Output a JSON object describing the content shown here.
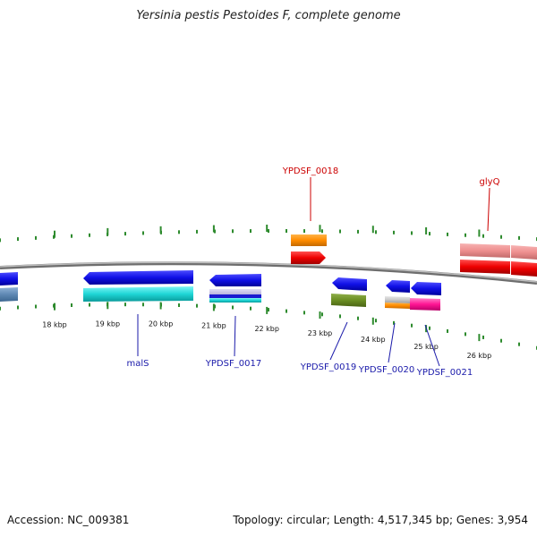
{
  "title": "Yersinia pestis Pestoides F, complete genome",
  "footer": {
    "accession": "Accession: NC_009381",
    "summary": "Topology: circular; Length: 4,517,345 bp; Genes: 3,954"
  },
  "colors": {
    "backbone": "#8c8c8c",
    "tick": "#2e8b2e",
    "label_forward": "#cc0000",
    "label_reverse": "#1a1aaa"
  },
  "axis": {
    "unit": "kbp",
    "ticks": [
      {
        "kbp": 18,
        "label": "18 kbp"
      },
      {
        "kbp": 19,
        "label": "19 kbp"
      },
      {
        "kbp": 20,
        "label": "20 kbp"
      },
      {
        "kbp": 21,
        "label": "21 kbp"
      },
      {
        "kbp": 22,
        "label": "22 kbp"
      },
      {
        "kbp": 23,
        "label": "23 kbp"
      },
      {
        "kbp": 24,
        "label": "24 kbp"
      },
      {
        "kbp": 25,
        "label": "25 kbp"
      },
      {
        "kbp": 26,
        "label": "26 kbp"
      }
    ]
  },
  "gene_labels": [
    {
      "name": "YPDSF_0018",
      "strand": "forward"
    },
    {
      "name": "glyQ",
      "strand": "forward"
    },
    {
      "name": "malS",
      "strand": "reverse"
    },
    {
      "name": "YPDSF_0017",
      "strand": "reverse"
    },
    {
      "name": "YPDSF_0019",
      "strand": "reverse"
    },
    {
      "name": "YPDSF_0020",
      "strand": "reverse"
    },
    {
      "name": "YPDSF_0021",
      "strand": "reverse"
    }
  ]
}
